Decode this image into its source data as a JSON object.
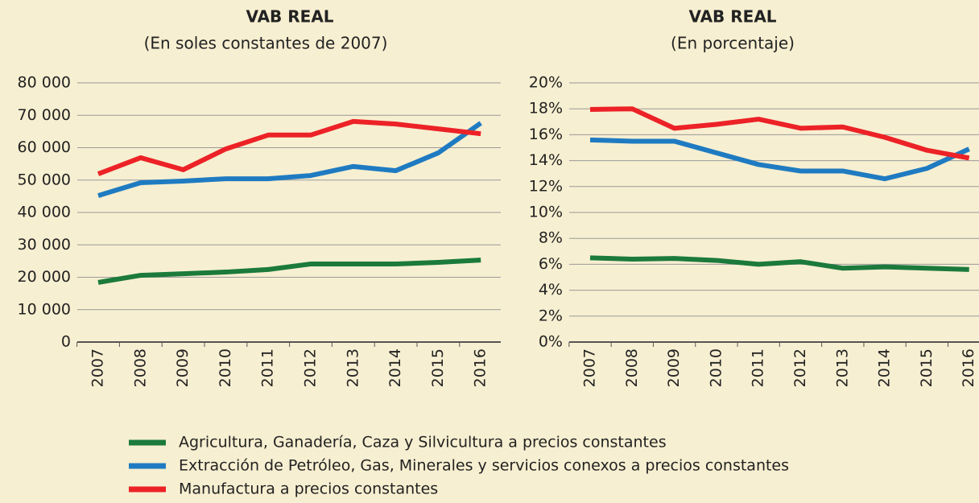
{
  "chart_data": [
    {
      "type": "line",
      "title": "VAB REAL",
      "subtitle": "(En soles constantes de 2007)",
      "categories": [
        "2007",
        "2008",
        "2009",
        "2010",
        "2011",
        "2012",
        "2013",
        "2014",
        "2015",
        "2016"
      ],
      "ylim": [
        0,
        80000
      ],
      "yticks": [
        0,
        {
          "value": 10000,
          "label": "10 000"
        },
        {
          "value": 20000,
          "label": "20 000"
        },
        {
          "value": 30000,
          "label": "30 000"
        },
        {
          "value": 40000,
          "label": "40 000"
        },
        {
          "value": 50000,
          "label": "50 000"
        },
        {
          "value": 60000,
          "label": "60 000"
        },
        {
          "value": 70000,
          "label": "70 000"
        },
        {
          "value": 80000,
          "label": "80 000"
        }
      ],
      "grid": true,
      "series": [
        {
          "name": "Agricultura, Ganadería, Caza y Silvicultura a precios constantes",
          "color": "#1b7a3c",
          "values": [
            18400,
            20600,
            21100,
            21600,
            22400,
            24100,
            24100,
            24100,
            24600,
            25300
          ]
        },
        {
          "name": "Extracción de Petróleo, Gas, Minerales y servicios conexos a precios constantes",
          "color": "#1f7bc1",
          "values": [
            45200,
            49200,
            49700,
            50400,
            50400,
            51400,
            54200,
            52900,
            58400,
            67600
          ]
        },
        {
          "name": "Manufactura a precios constantes",
          "color": "#ec2227",
          "values": [
            51900,
            56900,
            53200,
            59600,
            63900,
            63900,
            68100,
            67300,
            65800,
            64300
          ]
        }
      ]
    },
    {
      "type": "line",
      "title": "VAB REAL",
      "subtitle": "(En porcentaje)",
      "categories": [
        "2007",
        "2008",
        "2009",
        "2010",
        "2011",
        "2012",
        "2013",
        "2014",
        "2015",
        "2016"
      ],
      "ylim": [
        0,
        20
      ],
      "yticks": [
        {
          "value": 0,
          "label": "0%"
        },
        {
          "value": 2,
          "label": "2%"
        },
        {
          "value": 4,
          "label": "4%"
        },
        {
          "value": 6,
          "label": "6%"
        },
        {
          "value": 8,
          "label": "8%"
        },
        {
          "value": 10,
          "label": "10%"
        },
        {
          "value": 12,
          "label": "12%"
        },
        {
          "value": 14,
          "label": "14%"
        },
        {
          "value": 16,
          "label": "16%"
        },
        {
          "value": 18,
          "label": "18%"
        },
        {
          "value": 20,
          "label": "20%"
        }
      ],
      "grid": true,
      "series": [
        {
          "color": "#1b7a3c",
          "values": [
            6.5,
            6.4,
            6.45,
            6.3,
            6.0,
            6.2,
            5.7,
            5.8,
            5.7,
            5.6
          ]
        },
        {
          "color": "#1f7bc1",
          "values": [
            15.6,
            15.5,
            15.5,
            14.6,
            13.7,
            13.2,
            13.2,
            12.6,
            13.4,
            14.9
          ]
        },
        {
          "color": "#ec2227",
          "values": [
            17.95,
            18.0,
            16.5,
            16.8,
            17.2,
            16.5,
            16.6,
            15.8,
            14.8,
            14.2
          ]
        }
      ]
    }
  ]
}
